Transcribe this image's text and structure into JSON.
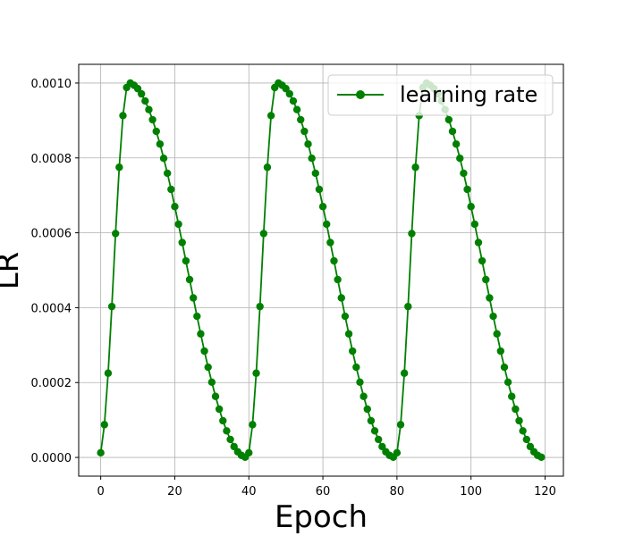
{
  "chart_data": {
    "type": "line",
    "title": "",
    "xlabel": "Epoch",
    "ylabel": "LR",
    "xlim": [
      -5.95,
      124.95
    ],
    "ylim": [
      -5e-05,
      0.00105
    ],
    "xticks": [
      0,
      20,
      40,
      60,
      80,
      100,
      120
    ],
    "xtick_labels": [
      "0",
      "20",
      "40",
      "60",
      "80",
      "100",
      "120"
    ],
    "yticks": [
      0,
      0.0002,
      0.0004,
      0.0006,
      0.0008,
      0.001
    ],
    "ytick_labels": [
      "0.0000",
      "0.0002",
      "0.0004",
      "0.0006",
      "0.0008",
      "0.0010"
    ],
    "grid": true,
    "legend_position": "top-right",
    "series": [
      {
        "name": "learning rate",
        "color": "#008000",
        "marker": "circle",
        "x": [
          0,
          1,
          2,
          3,
          4,
          5,
          6,
          7,
          8,
          9,
          10,
          11,
          12,
          13,
          14,
          15,
          16,
          17,
          18,
          19,
          20,
          21,
          22,
          23,
          24,
          25,
          26,
          27,
          28,
          29,
          30,
          31,
          32,
          33,
          34,
          35,
          36,
          37,
          38,
          39,
          40,
          41,
          42,
          43,
          44,
          45,
          46,
          47,
          48,
          49,
          50,
          51,
          52,
          53,
          54,
          55,
          56,
          57,
          58,
          59,
          60,
          61,
          62,
          63,
          64,
          65,
          66,
          67,
          68,
          69,
          70,
          71,
          72,
          73,
          74,
          75,
          76,
          77,
          78,
          79,
          80,
          81,
          82,
          83,
          84,
          85,
          86,
          87,
          88,
          89,
          90,
          91,
          92,
          93,
          94,
          95,
          96,
          97,
          98,
          99,
          100,
          101,
          102,
          103,
          104,
          105,
          106,
          107,
          108,
          109,
          110,
          111,
          112,
          113,
          114,
          115,
          116,
          117,
          118,
          119
        ],
        "y": [
          1.25e-05,
          8.75e-05,
          0.000225,
          0.000403,
          0.000598,
          0.000775,
          0.000913,
          0.000988,
          0.001,
          0.000994,
          0.000985,
          0.000971,
          0.000952,
          0.000929,
          0.000902,
          0.000871,
          0.000837,
          0.000799,
          0.000759,
          0.000716,
          0.00067,
          0.000623,
          0.000574,
          0.000525,
          0.000475,
          0.000426,
          0.000377,
          0.00033,
          0.000284,
          0.000241,
          0.000201,
          0.000163,
          0.000129,
          9.8e-05,
          7.1e-05,
          4.8e-05,
          2.9e-05,
          1.5e-05,
          5.5e-06,
          6e-07,
          1.25e-05,
          8.75e-05,
          0.000225,
          0.000403,
          0.000598,
          0.000775,
          0.000913,
          0.000988,
          0.001,
          0.000994,
          0.000985,
          0.000971,
          0.000952,
          0.000929,
          0.000902,
          0.000871,
          0.000837,
          0.000799,
          0.000759,
          0.000716,
          0.00067,
          0.000623,
          0.000574,
          0.000525,
          0.000475,
          0.000426,
          0.000377,
          0.00033,
          0.000284,
          0.000241,
          0.000201,
          0.000163,
          0.000129,
          9.8e-05,
          7.1e-05,
          4.8e-05,
          2.9e-05,
          1.5e-05,
          5.5e-06,
          6e-07,
          1.25e-05,
          8.75e-05,
          0.000225,
          0.000403,
          0.000598,
          0.000775,
          0.000913,
          0.000988,
          0.001,
          0.000994,
          0.000985,
          0.000971,
          0.000952,
          0.000929,
          0.000902,
          0.000871,
          0.000837,
          0.000799,
          0.000759,
          0.000716,
          0.00067,
          0.000623,
          0.000574,
          0.000525,
          0.000475,
          0.000426,
          0.000377,
          0.00033,
          0.000284,
          0.000241,
          0.000201,
          0.000163,
          0.000129,
          9.8e-05,
          7.1e-05,
          4.8e-05,
          2.9e-05,
          1.5e-05,
          5.5e-06,
          6e-07
        ]
      }
    ]
  }
}
